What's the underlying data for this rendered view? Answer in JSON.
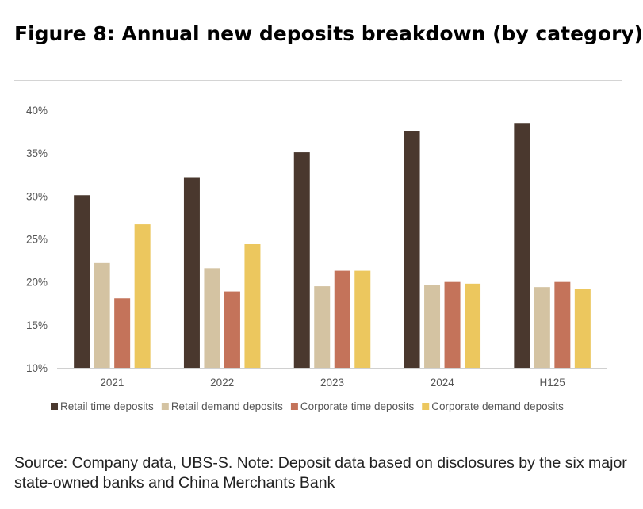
{
  "title": "Figure 8: Annual new deposits breakdown (by category)",
  "source": "Source: Company data, UBS-S. Note: Deposit data based on disclosures by the six major state-owned banks and China Merchants Bank",
  "chart_data": {
    "type": "bar",
    "categories": [
      "2021",
      "2022",
      "2023",
      "2024",
      "H125"
    ],
    "series": [
      {
        "name": "Retail time deposits",
        "color": "#4a382e",
        "values": [
          30.1,
          32.2,
          35.1,
          37.6,
          38.5
        ]
      },
      {
        "name": "Retail demand deposits",
        "color": "#d4c3a2",
        "values": [
          22.2,
          21.6,
          19.5,
          19.6,
          19.4
        ]
      },
      {
        "name": "Corporate time deposits",
        "color": "#c4735a",
        "values": [
          18.1,
          18.9,
          21.3,
          20.0,
          20.0
        ]
      },
      {
        "name": "Corporate demand deposits",
        "color": "#ecc75e",
        "values": [
          26.7,
          24.4,
          21.3,
          19.8,
          19.2
        ]
      }
    ],
    "ylim": [
      10,
      40
    ],
    "yticks": [
      "10%",
      "15%",
      "20%",
      "25%",
      "30%",
      "35%",
      "40%"
    ],
    "grid": false,
    "legend_position": "bottom"
  }
}
